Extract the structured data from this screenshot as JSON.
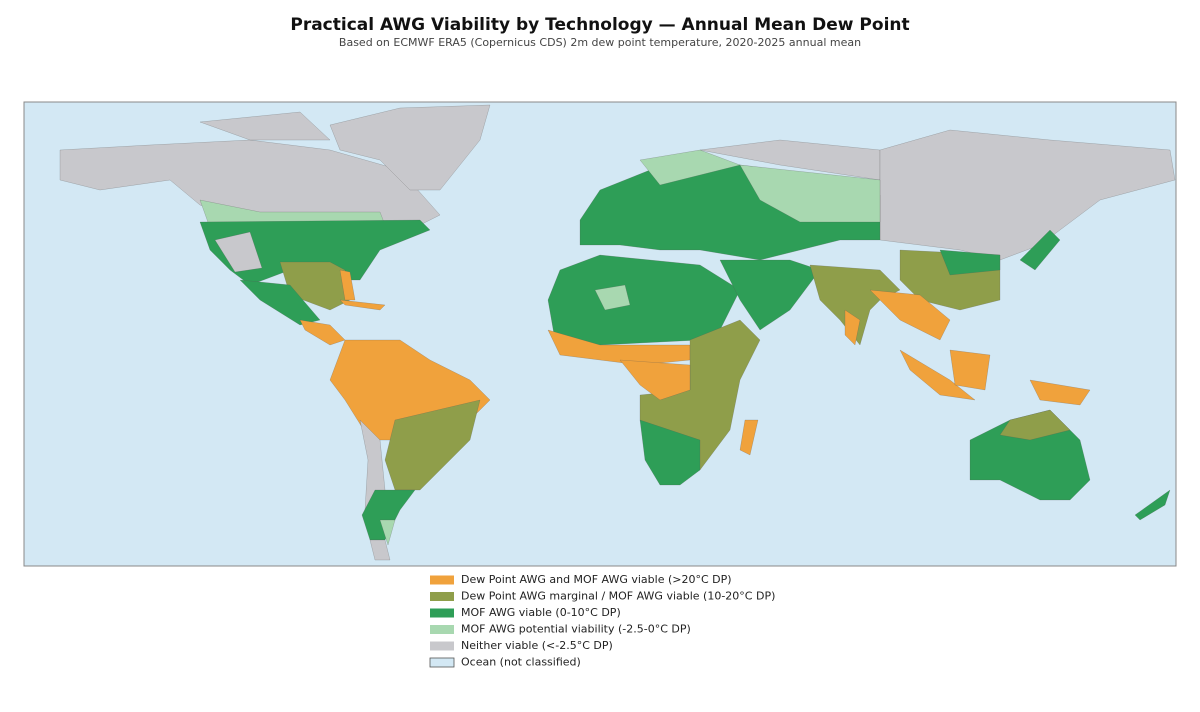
{
  "header": {
    "title": "Practical AWG Viability by Technology — Annual Mean Dew Point",
    "subtitle": "Based on ECMWF ERA5 (Copernicus CDS) 2m dew point temperature, 2020-2025 annual mean"
  },
  "legend": {
    "items": [
      {
        "label": "Dew Point AWG and MOF AWG viable (>20°C DP)",
        "color": "#f0a23c"
      },
      {
        "label": "Dew Point AWG marginal / MOF AWG viable (10-20°C DP)",
        "color": "#8f9e4a"
      },
      {
        "label": "MOF AWG viable (0-10°C DP)",
        "color": "#2e9e57"
      },
      {
        "label": "MOF AWG potential viability (-2.5-0°C DP)",
        "color": "#a8d8b0"
      },
      {
        "label": "Neither viable (<-2.5°C DP)",
        "color": "#c8c8cc"
      },
      {
        "label": "Ocean (not classified)",
        "color": "#d3e8f4"
      }
    ]
  }
}
